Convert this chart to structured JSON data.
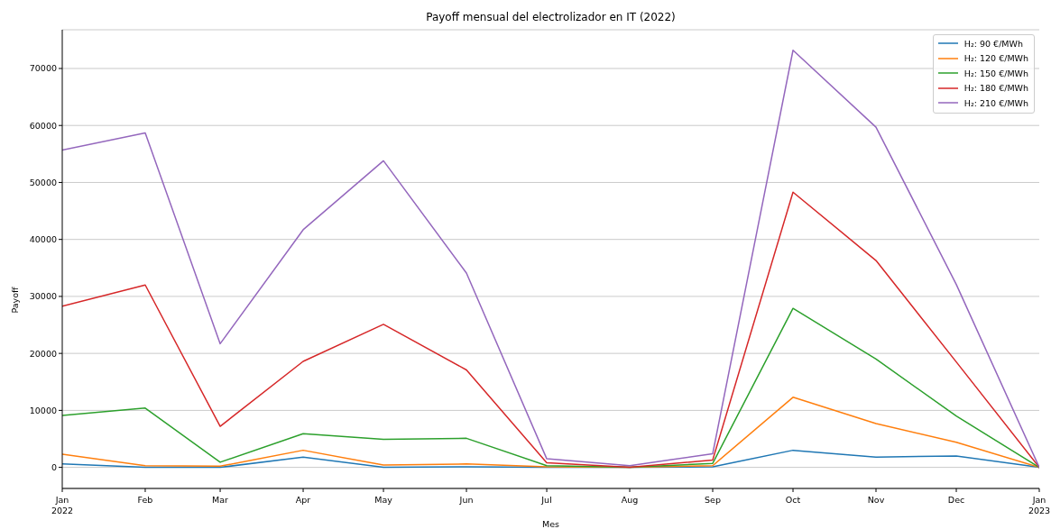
{
  "chart_data": {
    "type": "line",
    "title": "Payoff mensual del electrolizador en IT (2022)",
    "xlabel": "Mes",
    "ylabel": "Payoff",
    "x": [
      "2022-01",
      "2022-02",
      "2022-03",
      "2022-04",
      "2022-05",
      "2022-06",
      "2022-07",
      "2022-08",
      "2022-09",
      "2022-10",
      "2022-11",
      "2022-12",
      "2023-01"
    ],
    "series": [
      {
        "name": "H₂: 90 €/MWh",
        "color": "#1f77b4",
        "values": [
          600,
          0,
          0,
          1800,
          0,
          100,
          0,
          0,
          100,
          3000,
          1800,
          2000,
          0
        ]
      },
      {
        "name": "H₂: 120 €/MWh",
        "color": "#ff7f0e",
        "values": [
          2300,
          300,
          200,
          3000,
          400,
          600,
          100,
          0,
          300,
          12300,
          7700,
          4400,
          0
        ]
      },
      {
        "name": "H₂: 150 €/MWh",
        "color": "#2ca02c",
        "values": [
          9100,
          10400,
          900,
          5900,
          4900,
          5100,
          300,
          0,
          700,
          27900,
          19000,
          9000,
          0
        ]
      },
      {
        "name": "H₂: 180 €/MWh",
        "color": "#d62728",
        "values": [
          28300,
          32000,
          7200,
          18600,
          25100,
          17100,
          800,
          0,
          1300,
          48300,
          36300,
          18500,
          0
        ]
      },
      {
        "name": "H₂: 210 €/MWh",
        "color": "#9467bd",
        "values": [
          55700,
          58700,
          21700,
          41700,
          53800,
          34100,
          1500,
          300,
          2400,
          73200,
          59700,
          32100,
          0
        ]
      }
    ],
    "xlim": [
      "2022-01",
      "2023-01"
    ],
    "xticks": [
      {
        "value": "2022-01",
        "label": "Jan\n2022"
      },
      {
        "value": "2022-02",
        "label": "Feb"
      },
      {
        "value": "2022-03",
        "label": "Mar"
      },
      {
        "value": "2022-04",
        "label": "Apr"
      },
      {
        "value": "2022-05",
        "label": "May"
      },
      {
        "value": "2022-06",
        "label": "Jun"
      },
      {
        "value": "2022-07",
        "label": "Jul"
      },
      {
        "value": "2022-08",
        "label": "Aug"
      },
      {
        "value": "2022-09",
        "label": "Sep"
      },
      {
        "value": "2022-10",
        "label": "Oct"
      },
      {
        "value": "2022-11",
        "label": "Nov"
      },
      {
        "value": "2022-12",
        "label": "Dec"
      },
      {
        "value": "2023-01",
        "label": "Jan\n2023"
      }
    ],
    "ylim": [
      -3700,
      76800
    ],
    "yticks": [
      0,
      10000,
      20000,
      30000,
      40000,
      50000,
      60000,
      70000
    ],
    "grid": "y",
    "legend": "top right"
  }
}
